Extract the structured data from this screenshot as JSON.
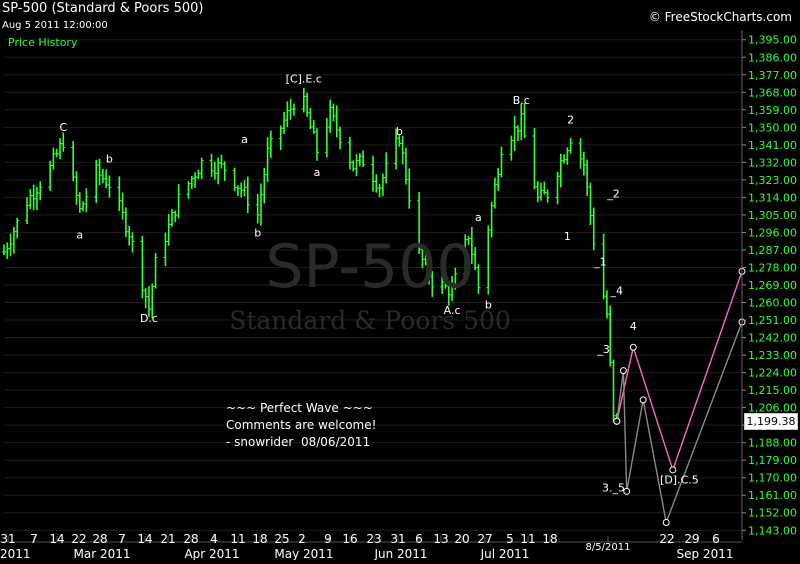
{
  "header": {
    "title": "SP-500 (Standard & Poors 500)",
    "subtitle": "Aug 5 2011 12:00:00",
    "legend": "Price History",
    "brand": "© FreeStockCharts.com"
  },
  "watermark": {
    "symbol": "SP-500",
    "name": "Standard & Poors 500"
  },
  "note": [
    "~~~ Perfect Wave ~~~",
    "Comments are welcome!",
    "- snowrider  08/06/2011"
  ],
  "last_price_label": "1,199.38",
  "colors": {
    "background": "#000000",
    "candle": "#33ff33",
    "projection_pink": "#ff66cc",
    "projection_gray": "#888888",
    "grid": "#1c1c1c"
  },
  "chart_data": {
    "type": "line",
    "title": "SP-500 (Standard & Poors 500)",
    "yaxis_side": "right",
    "ylim": [
      1138,
      1400
    ],
    "yticks": [
      "1,143.00",
      "1,152.00",
      "1,161.00",
      "1,170.00",
      "1,179.00",
      "1,188.00",
      "1,197.00",
      "1,206.00",
      "1,215.00",
      "1,224.00",
      "1,233.00",
      "1,242.00",
      "1,251.00",
      "1,260.00",
      "1,269.00",
      "1,278.00",
      "1,287.00",
      "1,296.00",
      "1,305.00",
      "1,314.00",
      "1,323.00",
      "1,332.00",
      "1,341.00",
      "1,350.00",
      "1,359.00",
      "1,368.00",
      "1,377.00",
      "1,386.00",
      "1,395.00"
    ],
    "xticks": [
      "31",
      "7",
      "14",
      "22",
      "28",
      "7",
      "14",
      "21",
      "28",
      "4",
      "11",
      "18",
      "25",
      "2",
      "9",
      "16",
      "23",
      "31",
      "6",
      "13",
      "20",
      "27",
      "5",
      "11",
      "18",
      "8/5/2011",
      "22",
      "29",
      "6"
    ],
    "month_labels": [
      "Mar 2011",
      "Apr 2011",
      "May 2011",
      "Jun 2011",
      "Jul 2011",
      "Sep 2011"
    ],
    "corner_label": "2011",
    "x_range": [
      "2011-01-31",
      "2011-09-12"
    ],
    "series": [
      {
        "style": "ohlc_bars",
        "points": [
          [
            "2011-01-31",
            1286
          ],
          [
            "2011-02-07",
            1312
          ],
          [
            "2011-02-14",
            1329
          ],
          [
            "2011-02-18",
            1343
          ],
          [
            "2011-02-23",
            1307
          ],
          [
            "2011-02-28",
            1327
          ],
          [
            "2011-03-04",
            1321
          ],
          [
            "2011-03-10",
            1296
          ],
          [
            "2011-03-16",
            1257
          ],
          [
            "2011-03-18",
            1280
          ],
          [
            "2011-03-25",
            1313
          ],
          [
            "2011-04-01",
            1332
          ],
          [
            "2011-04-08",
            1329
          ],
          [
            "2011-04-14",
            1316
          ],
          [
            "2011-04-18",
            1305
          ],
          [
            "2011-04-21",
            1337
          ],
          [
            "2011-04-29",
            1363
          ],
          [
            "2011-05-02",
            1362
          ],
          [
            "2011-05-06",
            1338
          ],
          [
            "2011-05-10",
            1357
          ],
          [
            "2011-05-17",
            1330
          ],
          [
            "2011-05-20",
            1333
          ],
          [
            "2011-05-25",
            1320
          ],
          [
            "2011-05-31",
            1345
          ],
          [
            "2011-06-06",
            1285
          ],
          [
            "2011-06-10",
            1271
          ],
          [
            "2011-06-16",
            1266
          ],
          [
            "2011-06-21",
            1295
          ],
          [
            "2011-06-24",
            1268
          ],
          [
            "2011-07-01",
            1340
          ],
          [
            "2011-07-07",
            1353
          ],
          [
            "2011-07-12",
            1313
          ],
          [
            "2011-07-15",
            1316
          ],
          [
            "2011-07-22",
            1345
          ],
          [
            "2011-07-26",
            1331
          ],
          [
            "2011-07-29",
            1292
          ],
          [
            "2011-08-02",
            1254
          ],
          [
            "2011-08-04",
            1200
          ],
          [
            "2011-08-05",
            1199
          ]
        ]
      },
      {
        "name": "",
        "style": "projection",
        "color": "#ff66cc",
        "points": [
          [
            "2011-08-05",
            1199
          ],
          [
            "2011-08-10",
            1237
          ],
          [
            "2011-08-22",
            1174
          ],
          [
            "2011-09-12",
            1276
          ]
        ]
      },
      {
        "name": "",
        "style": "projection",
        "color": "#888888",
        "points": [
          [
            "2011-08-05",
            1199
          ],
          [
            "2011-08-07",
            1225
          ],
          [
            "2011-08-08",
            1163
          ],
          [
            "2011-08-13",
            1210
          ],
          [
            "2011-08-20",
            1147
          ],
          [
            "2011-09-12",
            1250
          ]
        ]
      }
    ],
    "wave_labels": [
      {
        "text": "C",
        "date": "2011-02-18",
        "price": 1348
      },
      {
        "text": "a",
        "date": "2011-02-23",
        "price": 1293
      },
      {
        "text": "b",
        "date": "2011-03-04",
        "price": 1332
      },
      {
        "text": "D.c",
        "date": "2011-03-16",
        "price": 1250
      },
      {
        "text": "a",
        "date": "2011-04-14",
        "price": 1342
      },
      {
        "text": "b",
        "date": "2011-04-18",
        "price": 1294
      },
      {
        "text": "[C].E.c",
        "date": "2011-05-02",
        "price": 1373
      },
      {
        "text": "a",
        "date": "2011-05-06",
        "price": 1325
      },
      {
        "text": "b",
        "date": "2011-05-31",
        "price": 1346
      },
      {
        "text": "A.c",
        "date": "2011-06-16",
        "price": 1254
      },
      {
        "text": "a",
        "date": "2011-06-24",
        "price": 1302
      },
      {
        "text": "b",
        "date": "2011-06-27",
        "price": 1257
      },
      {
        "text": "B.c",
        "date": "2011-07-07",
        "price": 1362
      },
      {
        "text": "2",
        "date": "2011-07-22",
        "price": 1352
      },
      {
        "text": "1",
        "date": "2011-07-21",
        "price": 1292
      },
      {
        "text": "_2",
        "date": "2011-08-04",
        "price": 1314
      },
      {
        "text": "_1",
        "date": "2011-07-31",
        "price": 1279
      },
      {
        "text": "_4",
        "date": "2011-08-05",
        "price": 1264
      },
      {
        "text": "4",
        "date": "2011-08-10",
        "price": 1246
      },
      {
        "text": "_3",
        "date": "2011-08-01",
        "price": 1234
      },
      {
        "text": "3._5",
        "date": "2011-08-04",
        "price": 1163
      },
      {
        "text": "[D].C.5",
        "date": "2011-08-24",
        "price": 1167
      }
    ]
  }
}
